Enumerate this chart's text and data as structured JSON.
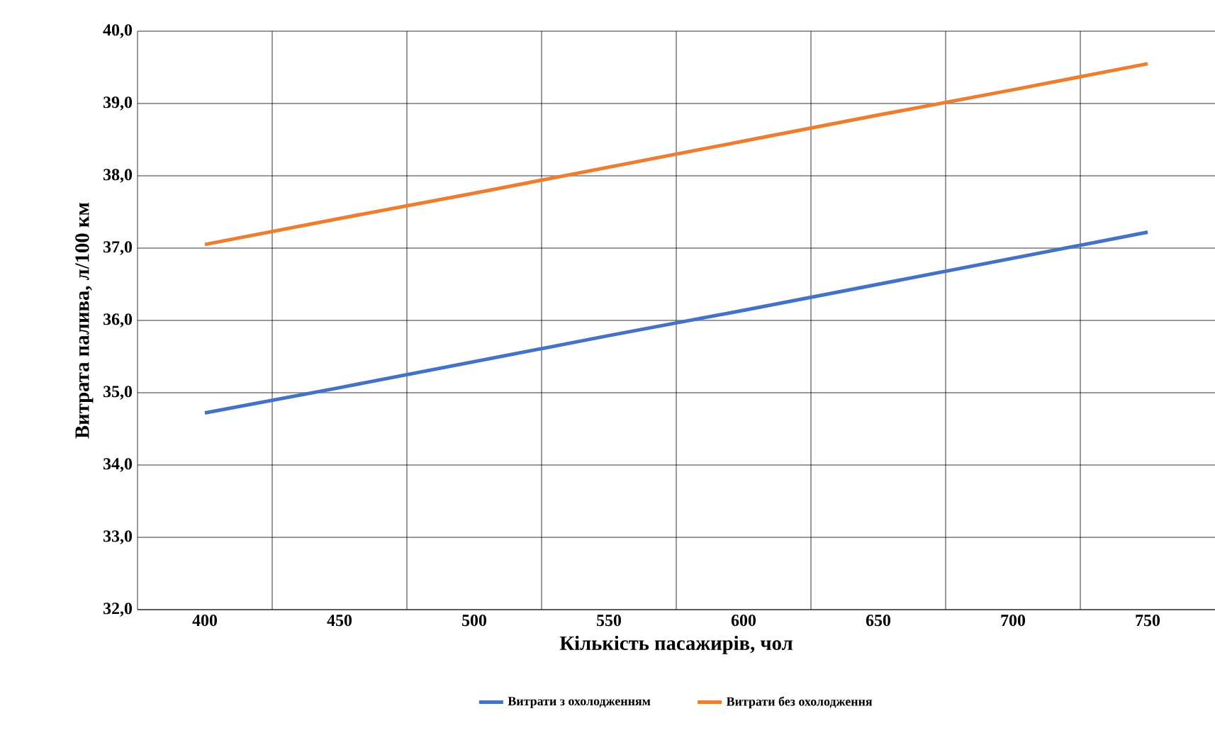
{
  "chart_data": {
    "type": "line",
    "xlabel": "Кількість пасажирів, чол",
    "ylabel": "Витрата палива, л/100 км",
    "categories": [
      "400",
      "450",
      "500",
      "550",
      "600",
      "650",
      "700",
      "750"
    ],
    "series": [
      {
        "name": "Витрати з охолодженням",
        "color": "#4472c4",
        "values": [
          34.72,
          35.07,
          35.43,
          35.79,
          36.14,
          36.5,
          36.86,
          37.22
        ]
      },
      {
        "name": "Витрати без охолодження",
        "color": "#ed7d31",
        "values": [
          37.05,
          37.41,
          37.76,
          38.12,
          38.48,
          38.84,
          39.19,
          39.55
        ]
      }
    ],
    "ylim": [
      32,
      40
    ],
    "yticks": [
      {
        "value": 32,
        "label": "32,0"
      },
      {
        "value": 33,
        "label": "33,0"
      },
      {
        "value": 34,
        "label": "34,0"
      },
      {
        "value": 35,
        "label": "35,0"
      },
      {
        "value": 36,
        "label": "36,0"
      },
      {
        "value": 37,
        "label": "37,0"
      },
      {
        "value": 38,
        "label": "38,0"
      },
      {
        "value": 39,
        "label": "39,0"
      },
      {
        "value": 40,
        "label": "40,0"
      }
    ],
    "grid": true,
    "legend": "bottom",
    "marker": "none",
    "line_style": "solid"
  }
}
